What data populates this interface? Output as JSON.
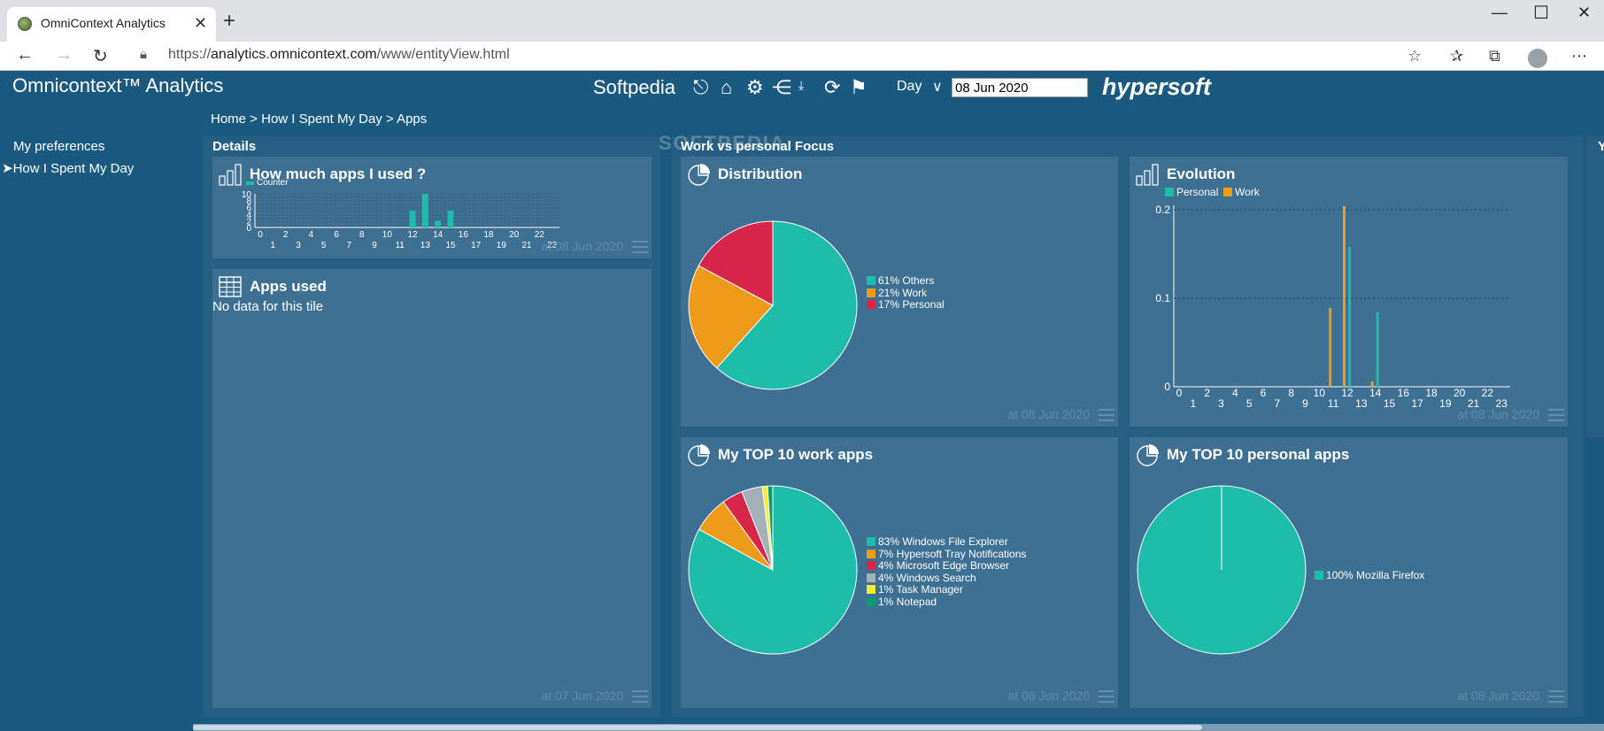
{
  "browser": {
    "tab_title": "OmniContext Analytics",
    "url_prefix": "https://",
    "url_host": "analytics.omnicontext.com",
    "url_path": "/www/entityView.html"
  },
  "header": {
    "app_title": "Omnicontext™ Analytics",
    "brand": "Softpedia",
    "period_label": "Day",
    "date_value": "08 Jun 2020",
    "logo": "hypersoft",
    "breadcrumb": "Home > How I Spent My Day > Apps"
  },
  "sidebar": {
    "items": [
      {
        "label": "My preferences",
        "active": false
      },
      {
        "label": "How I Spent My Day",
        "active": true
      }
    ]
  },
  "sections": {
    "details": "Details",
    "focus": "Work vs personal Focus",
    "cut": "Y"
  },
  "watermark": "SOFTPEDIA",
  "tiles": {
    "apps_used_count": {
      "title": "How much apps I used ?",
      "footer": "at 08 Jun 2020"
    },
    "apps_used": {
      "title": "Apps used",
      "empty": "No data for this tile",
      "footer": "at 07 Jun 2020"
    },
    "distribution": {
      "title": "Distribution",
      "footer": "at 08 Jun 2020"
    },
    "evolution": {
      "title": "Evolution",
      "footer": "at 08 Jun 2020"
    },
    "top_work": {
      "title": "My TOP 10 work apps",
      "footer": "at 08 Jun 2020"
    },
    "top_personal": {
      "title": "My TOP 10 personal apps",
      "footer": "at 08 Jun 2020"
    }
  },
  "colors": {
    "teal": "#1dbdaa",
    "orange": "#ee9b1c",
    "red": "#d8264b",
    "gray": "#a4b0b7",
    "yellow": "#f4ea3a",
    "green": "#0d9b6c"
  },
  "chart_data": [
    {
      "id": "apps-count",
      "type": "bar",
      "legend": [
        "Counter"
      ],
      "x": [
        0,
        1,
        2,
        3,
        4,
        5,
        6,
        7,
        8,
        9,
        10,
        11,
        12,
        13,
        14,
        15,
        16,
        17,
        18,
        19,
        20,
        21,
        22,
        23
      ],
      "values": [
        0,
        0,
        0,
        0,
        0,
        0,
        0,
        0,
        0,
        0,
        0,
        0,
        5,
        10,
        2,
        5,
        0,
        0,
        0,
        0,
        0,
        0,
        0,
        0
      ],
      "y_ticks": [
        0,
        2,
        4,
        6,
        8,
        10
      ],
      "ylim": [
        0,
        10
      ]
    },
    {
      "id": "distribution",
      "type": "pie",
      "labels": [
        "61% Others",
        "21% Work",
        "17% Personal"
      ],
      "values": [
        61,
        21,
        17
      ],
      "colors": [
        "#1dbdaa",
        "#ee9b1c",
        "#d8264b"
      ]
    },
    {
      "id": "evolution",
      "type": "bar",
      "series": [
        {
          "name": "Personal",
          "color": "#1dbdaa",
          "values": [
            0,
            0,
            0,
            0,
            0,
            0,
            0,
            0,
            0,
            0,
            0,
            0,
            0.158,
            0,
            0.084,
            0,
            0,
            0,
            0,
            0,
            0,
            0,
            0,
            0
          ]
        },
        {
          "name": "Work",
          "color": "#ee9b1c",
          "values": [
            0,
            0,
            0,
            0,
            0,
            0,
            0,
            0,
            0,
            0,
            0,
            0.089,
            0.204,
            0,
            0.006,
            0,
            0,
            0,
            0,
            0,
            0,
            0,
            0,
            0
          ]
        }
      ],
      "x": [
        0,
        1,
        2,
        3,
        4,
        5,
        6,
        7,
        8,
        9,
        10,
        11,
        12,
        13,
        14,
        15,
        16,
        17,
        18,
        19,
        20,
        21,
        22,
        23
      ],
      "y_ticks": [
        0,
        0.1,
        0.2
      ],
      "ylim": [
        0,
        0.205
      ]
    },
    {
      "id": "top-work",
      "type": "pie",
      "labels": [
        "83% Windows File Explorer",
        "7% Hypersoft Tray Notifications",
        "4% Microsoft Edge Browser",
        "4% Windows Search",
        "1% Task Manager",
        "1% Notepad"
      ],
      "values": [
        83,
        7,
        4,
        4,
        1,
        1
      ],
      "colors": [
        "#1dbdaa",
        "#ee9b1c",
        "#d8264b",
        "#a4b0b7",
        "#f4ea3a",
        "#0d9b6c"
      ]
    },
    {
      "id": "top-personal",
      "type": "pie",
      "labels": [
        "100% Mozilla Firefox"
      ],
      "values": [
        100
      ],
      "colors": [
        "#1dbdaa"
      ]
    }
  ]
}
